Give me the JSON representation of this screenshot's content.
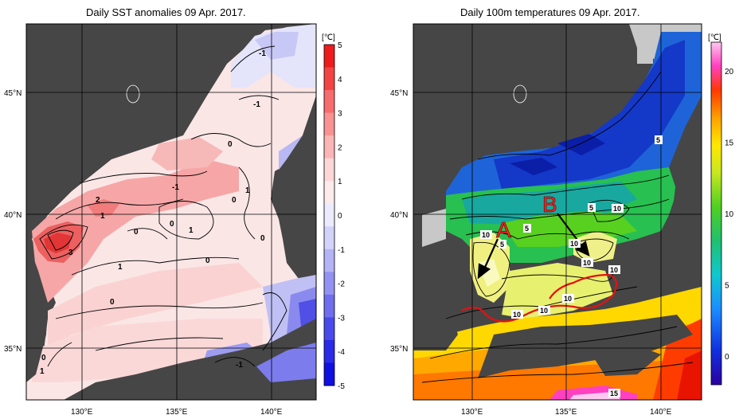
{
  "left_map": {
    "title": "Daily SST anomalies 09 Apr. 2017.",
    "lat_labels": [
      "45°N",
      "40°N",
      "35°N"
    ],
    "lon_labels": [
      "130°E",
      "135°E",
      "140°E"
    ],
    "colorbar": {
      "unit": "[℃]",
      "ticks": [
        "5",
        "4",
        "3",
        "2",
        "1",
        "0",
        "-1",
        "-2",
        "-3",
        "-4",
        "-5"
      ],
      "colors": [
        "#ee1c1c",
        "#f34444",
        "#f76c6c",
        "#f99292",
        "#fbb5b5",
        "#fdd6d6",
        "#fdebeb",
        "#ebebfd",
        "#d3d3f9",
        "#b3b3f5",
        "#9292f2",
        "#6e6eee",
        "#4a4aec",
        "#2a2ae8",
        "#1010e0"
      ]
    },
    "contour_labels": [
      "-1",
      "-1",
      "0",
      "-1",
      "2",
      "1",
      "0",
      "0",
      "1",
      "0",
      "0",
      "1",
      "3",
      "1",
      "0",
      "0",
      "0",
      "1",
      "-1"
    ]
  },
  "right_map": {
    "title": "Daily 100m temperatures 09 Apr. 2017.",
    "lat_labels": [
      "45°N",
      "40°N",
      "35°N"
    ],
    "lon_labels": [
      "130°E",
      "135°E",
      "140°E"
    ],
    "colorbar": {
      "unit": "[℃]",
      "ticks": [
        "20",
        "15",
        "10",
        "5",
        "0"
      ]
    },
    "markers": {
      "a": "A",
      "b": "B"
    },
    "contour_labels": [
      "5",
      "5",
      "10",
      "10",
      "10",
      "10",
      "10",
      "10",
      "10",
      "5",
      "5",
      "10",
      "15"
    ]
  },
  "colors": {
    "land": "#464646",
    "missing": "#c8c8c8",
    "front_line": "#e81010"
  }
}
